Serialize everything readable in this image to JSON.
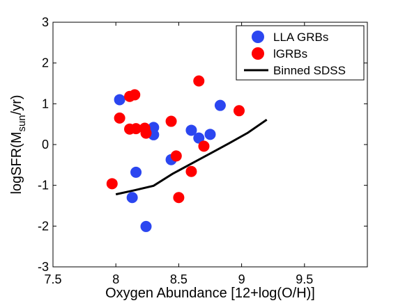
{
  "chart_data": {
    "type": "scatter",
    "xlabel": "Oxygen Abundance [12+log(O/H)]",
    "ylabel": {
      "prefix": "logSFR(M",
      "subscript": "sun",
      "suffix": "/yr)"
    },
    "xlim": [
      7.5,
      10.0
    ],
    "ylim": [
      -3,
      3
    ],
    "xticks": [
      "7.5",
      "8",
      "8.5",
      "9",
      "9.5"
    ],
    "yticks": [
      "-3",
      "-2",
      "-1",
      "0",
      "1",
      "2",
      "3"
    ],
    "grid": false,
    "legend_position": "top-right",
    "series": [
      {
        "name": "LLA GRBs",
        "kind": "points",
        "color": "#2b46f0",
        "points": [
          [
            8.03,
            1.1
          ],
          [
            8.3,
            0.42
          ],
          [
            8.3,
            0.24
          ],
          [
            8.16,
            -0.68
          ],
          [
            8.13,
            -1.3
          ],
          [
            8.24,
            -2.01
          ],
          [
            8.44,
            -0.37
          ],
          [
            8.6,
            0.35
          ],
          [
            8.66,
            0.16
          ],
          [
            8.75,
            0.25
          ],
          [
            8.83,
            0.96
          ]
        ]
      },
      {
        "name": "lGRBs",
        "kind": "points",
        "color": "#ff0000",
        "points": [
          [
            7.97,
            -0.96
          ],
          [
            8.03,
            0.65
          ],
          [
            8.11,
            1.18
          ],
          [
            8.15,
            1.22
          ],
          [
            8.11,
            0.38
          ],
          [
            8.16,
            0.39
          ],
          [
            8.23,
            0.4
          ],
          [
            8.24,
            0.28
          ],
          [
            8.44,
            0.57
          ],
          [
            8.48,
            -0.28
          ],
          [
            8.5,
            -1.3
          ],
          [
            8.6,
            -0.66
          ],
          [
            8.66,
            1.56
          ],
          [
            8.7,
            -0.04
          ],
          [
            8.98,
            0.83
          ]
        ]
      },
      {
        "name": "Binned SDSS",
        "kind": "line",
        "color": "#000000",
        "points": [
          [
            8.0,
            -1.22
          ],
          [
            8.15,
            -1.12
          ],
          [
            8.3,
            -1.01
          ],
          [
            8.45,
            -0.72
          ],
          [
            8.6,
            -0.47
          ],
          [
            8.75,
            -0.22
          ],
          [
            8.9,
            0.03
          ],
          [
            9.05,
            0.29
          ],
          [
            9.2,
            0.61
          ]
        ]
      }
    ]
  }
}
